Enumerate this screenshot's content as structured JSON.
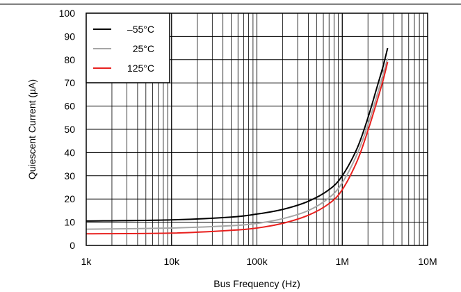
{
  "chart_data": {
    "type": "line",
    "xlabel": "Bus Frequency (Hz)",
    "ylabel": "Quiescent Current (µA)",
    "x_scale": "log",
    "xlim": [
      1000,
      10000000
    ],
    "ylim": [
      0,
      100
    ],
    "x_ticks": [
      {
        "value": 1000,
        "label": "1k"
      },
      {
        "value": 10000,
        "label": "10k"
      },
      {
        "value": 100000,
        "label": "100k"
      },
      {
        "value": 1000000,
        "label": "1M"
      },
      {
        "value": 10000000,
        "label": "10M"
      }
    ],
    "y_ticks": [
      0,
      10,
      20,
      30,
      40,
      50,
      60,
      70,
      80,
      90,
      100
    ],
    "grid": true,
    "legend_position": "top-left",
    "series": [
      {
        "name": "–55°C",
        "color": "#000000",
        "points": [
          [
            1000,
            10.5
          ],
          [
            10000,
            11.0
          ],
          [
            50000,
            12.2
          ],
          [
            100000,
            13.5
          ],
          [
            200000,
            15.5
          ],
          [
            400000,
            19.0
          ],
          [
            700000,
            24.0
          ],
          [
            1000000,
            30.0
          ],
          [
            1500000,
            42.0
          ],
          [
            2000000,
            55.0
          ],
          [
            2500000,
            67.0
          ],
          [
            3000000,
            77.0
          ],
          [
            3400000,
            85.0
          ]
        ]
      },
      {
        "name": "25°C",
        "color": "#a6a6a6",
        "points": [
          [
            1000,
            7.0
          ],
          [
            10000,
            7.5
          ],
          [
            50000,
            8.5
          ],
          [
            100000,
            9.5
          ],
          [
            200000,
            11.5
          ],
          [
            400000,
            15.0
          ],
          [
            700000,
            20.5
          ],
          [
            1000000,
            27.0
          ],
          [
            1500000,
            39.5
          ],
          [
            2000000,
            52.0
          ],
          [
            2500000,
            63.5
          ],
          [
            3000000,
            73.5
          ],
          [
            3400000,
            80.5
          ]
        ]
      },
      {
        "name": "125°C",
        "color": "#e8201e",
        "points": [
          [
            1000,
            5.0
          ],
          [
            10000,
            5.3
          ],
          [
            50000,
            6.5
          ],
          [
            100000,
            7.5
          ],
          [
            200000,
            9.5
          ],
          [
            400000,
            13.0
          ],
          [
            700000,
            18.0
          ],
          [
            1000000,
            24.0
          ],
          [
            1500000,
            36.5
          ],
          [
            2000000,
            49.5
          ],
          [
            2500000,
            61.0
          ],
          [
            3000000,
            71.0
          ],
          [
            3400000,
            79.0
          ]
        ]
      }
    ]
  }
}
